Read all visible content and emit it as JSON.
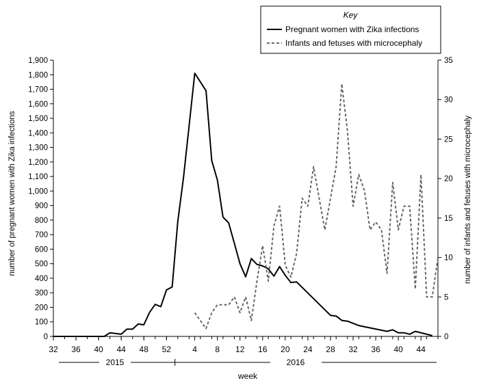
{
  "chart_data": {
    "type": "line",
    "xlabel": "week",
    "x_week_ticks": [
      "32",
      "36",
      "40",
      "44",
      "48",
      "52",
      "4",
      "8",
      "12",
      "16",
      "20",
      "24",
      "28",
      "32",
      "36",
      "40",
      "44"
    ],
    "x_year_labels": [
      "2015",
      "2016"
    ],
    "y_left": {
      "label": "number of pregnant women with Zika infections",
      "ylim": [
        0,
        1900
      ],
      "ticks": [
        "0",
        "100",
        "200",
        "300",
        "400",
        "500",
        "600",
        "700",
        "800",
        "900",
        "1,000",
        "1,100",
        "1,200",
        "1,300",
        "1,400",
        "1,500",
        "1,600",
        "1,700",
        "1,800",
        "1,900"
      ]
    },
    "y_right": {
      "label": "number of infants and fetuses with microcephaly",
      "ylim": [
        0,
        35
      ],
      "ticks": [
        "0",
        "5",
        "10",
        "15",
        "20",
        "25",
        "30",
        "35"
      ]
    },
    "legend": {
      "title": "Key",
      "placement": "top-right",
      "entries": [
        "Pregnant women with Zika infections",
        "Infants and fetuses with microcephaly"
      ]
    },
    "series": [
      {
        "name": "Pregnant women with Zika infections",
        "axis": "left",
        "style": "solid",
        "color": "#000000",
        "points": [
          [
            "2015-32",
            0
          ],
          [
            "2015-34",
            0
          ],
          [
            "2015-36",
            0
          ],
          [
            "2015-38",
            0
          ],
          [
            "2015-40",
            0
          ],
          [
            "2015-41",
            0
          ],
          [
            "2015-42",
            25
          ],
          [
            "2015-43",
            20
          ],
          [
            "2015-44",
            15
          ],
          [
            "2015-45",
            50
          ],
          [
            "2015-46",
            50
          ],
          [
            "2015-47",
            85
          ],
          [
            "2015-48",
            80
          ],
          [
            "2015-49",
            165
          ],
          [
            "2015-50",
            220
          ],
          [
            "2015-51",
            205
          ],
          [
            "2015-52",
            320
          ],
          [
            "2015-53",
            340
          ],
          [
            "2016-01",
            790
          ],
          [
            "2016-02",
            1090
          ],
          [
            "2016-03",
            1450
          ],
          [
            "2016-04",
            1810
          ],
          [
            "2016-06",
            1690
          ],
          [
            "2016-07",
            1210
          ],
          [
            "2016-08",
            1075
          ],
          [
            "2016-09",
            820
          ],
          [
            "2016-10",
            780
          ],
          [
            "2016-11",
            640
          ],
          [
            "2016-12",
            500
          ],
          [
            "2016-13",
            410
          ],
          [
            "2016-14",
            535
          ],
          [
            "2016-15",
            495
          ],
          [
            "2016-16",
            485
          ],
          [
            "2016-17",
            465
          ],
          [
            "2016-18",
            415
          ],
          [
            "2016-19",
            480
          ],
          [
            "2016-20",
            420
          ],
          [
            "2016-21",
            370
          ],
          [
            "2016-22",
            375
          ],
          [
            "2016-28",
            145
          ],
          [
            "2016-29",
            140
          ],
          [
            "2016-30",
            110
          ],
          [
            "2016-31",
            105
          ],
          [
            "2016-33",
            75
          ],
          [
            "2016-38",
            35
          ],
          [
            "2016-39",
            45
          ],
          [
            "2016-40",
            25
          ],
          [
            "2016-41",
            25
          ],
          [
            "2016-42",
            15
          ],
          [
            "2016-43",
            35
          ],
          [
            "2016-46",
            5
          ]
        ]
      },
      {
        "name": "Infants and fetuses with microcephaly",
        "axis": "right",
        "style": "dashed",
        "color": "#666666",
        "points": [
          [
            "2016-04",
            3
          ],
          [
            "2016-06",
            1
          ],
          [
            "2016-07",
            3
          ],
          [
            "2016-08",
            4
          ],
          [
            "2016-09",
            4
          ],
          [
            "2016-10",
            4
          ],
          [
            "2016-11",
            5
          ],
          [
            "2016-12",
            3
          ],
          [
            "2016-13",
            5
          ],
          [
            "2016-14",
            2
          ],
          [
            "2016-15",
            7
          ],
          [
            "2016-16",
            11.5
          ],
          [
            "2016-17",
            7
          ],
          [
            "2016-18",
            14
          ],
          [
            "2016-19",
            16.5
          ],
          [
            "2016-20",
            9
          ],
          [
            "2016-21",
            7.5
          ],
          [
            "2016-22",
            10.5
          ],
          [
            "2016-23",
            17.5
          ],
          [
            "2016-24",
            16.5
          ],
          [
            "2016-25",
            21.5
          ],
          [
            "2016-26",
            17.5
          ],
          [
            "2016-27",
            13.5
          ],
          [
            "2016-28",
            17.5
          ],
          [
            "2016-29",
            21.5
          ],
          [
            "2016-30",
            32
          ],
          [
            "2016-31",
            26
          ],
          [
            "2016-32",
            16.5
          ],
          [
            "2016-33",
            20.5
          ],
          [
            "2016-34",
            18.5
          ],
          [
            "2016-35",
            13.5
          ],
          [
            "2016-36",
            14.5
          ],
          [
            "2016-37",
            13.5
          ],
          [
            "2016-38",
            8
          ],
          [
            "2016-39",
            19.5
          ],
          [
            "2016-40",
            13.5
          ],
          [
            "2016-41",
            16.5
          ],
          [
            "2016-42",
            16.5
          ],
          [
            "2016-43",
            6
          ],
          [
            "2016-44",
            20.5
          ],
          [
            "2016-45",
            5
          ],
          [
            "2016-46",
            5
          ],
          [
            "2016-47",
            10
          ]
        ]
      }
    ]
  }
}
